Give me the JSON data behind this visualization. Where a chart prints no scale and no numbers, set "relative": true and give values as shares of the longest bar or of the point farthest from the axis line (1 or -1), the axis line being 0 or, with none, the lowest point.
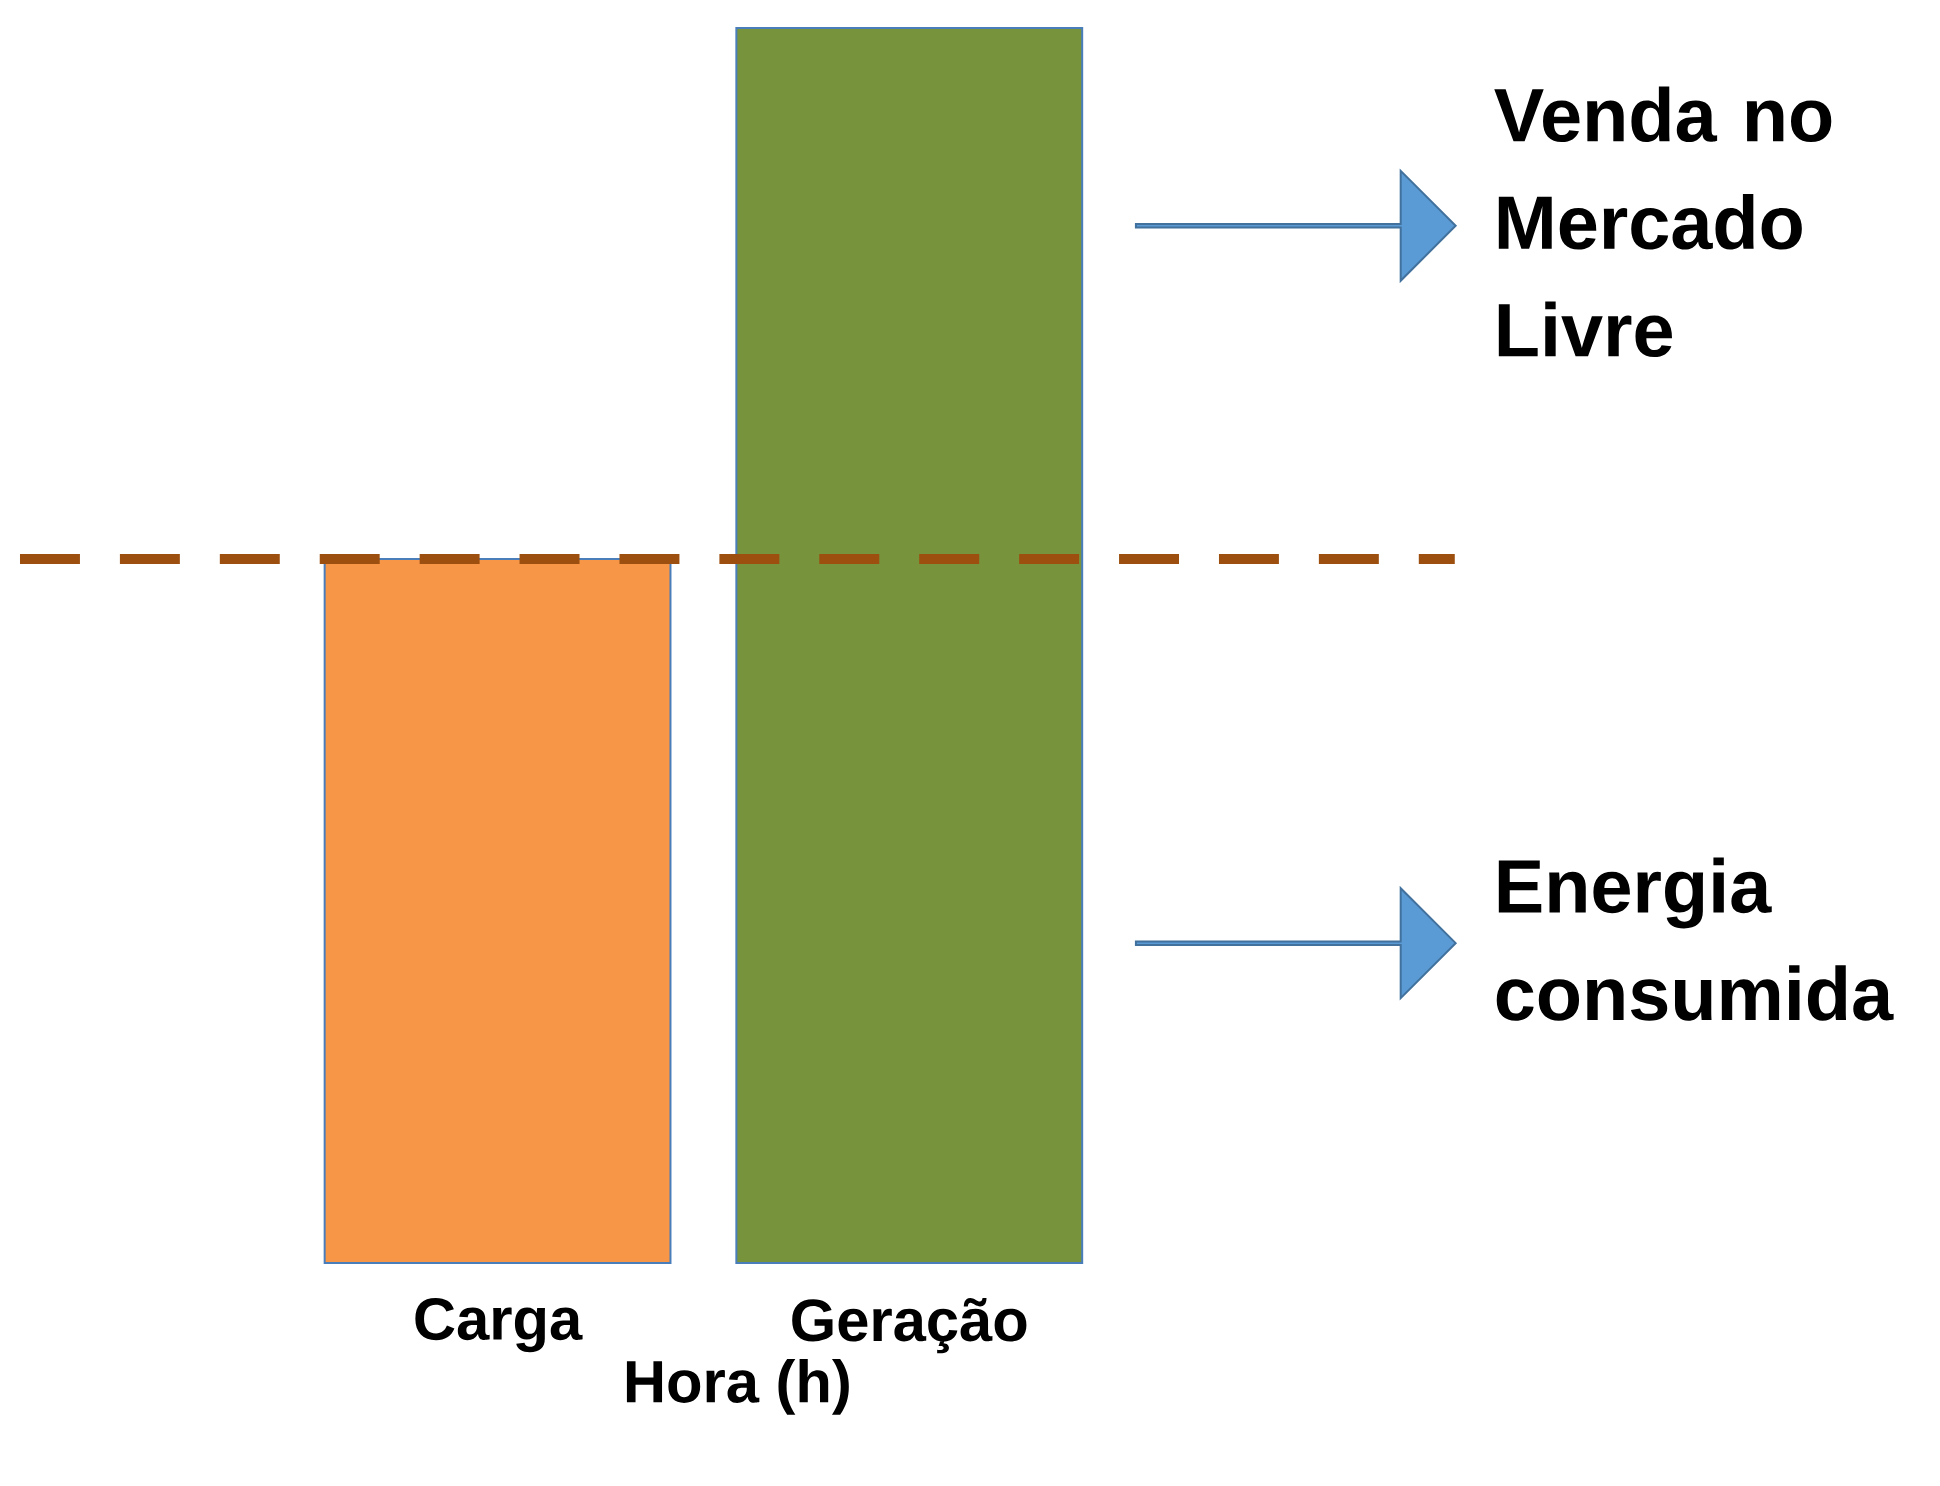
{
  "chart_data": {
    "type": "bar",
    "relative": true,
    "xlabel": "Hora (h)",
    "categories": [
      "Carga",
      "Geração"
    ],
    "values": [
      0.57,
      1
    ],
    "colors": [
      "#f79646",
      "#77933c"
    ],
    "ref_lines": [
      {
        "axis": "y",
        "value": 0.57,
        "color": "#9c4f0f",
        "line_style": "dashed"
      }
    ],
    "annotations": [
      "Venda no Mercado Livre",
      "Energia consumida"
    ]
  }
}
